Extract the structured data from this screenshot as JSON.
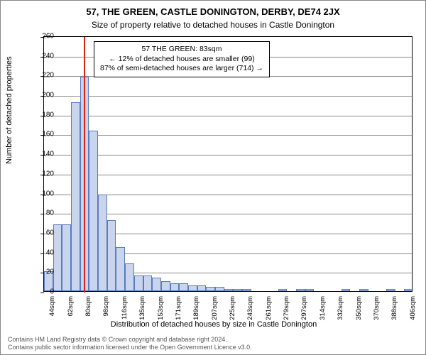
{
  "header": {
    "address": "57, THE GREEN, CASTLE DONINGTON, DERBY, DE74 2JX",
    "subtitle": "Size of property relative to detached houses in Castle Donington"
  },
  "chart": {
    "type": "histogram",
    "ylabel": "Number of detached properties",
    "xlabel": "Distribution of detached houses by size in Castle Donington",
    "ylim": [
      0,
      260
    ],
    "ytick_step": 20,
    "yticks": [
      0,
      20,
      40,
      60,
      80,
      100,
      120,
      140,
      160,
      180,
      200,
      220,
      240,
      260
    ],
    "xticks": [
      "44sqm",
      "62sqm",
      "80sqm",
      "98sqm",
      "116sqm",
      "135sqm",
      "153sqm",
      "171sqm",
      "189sqm",
      "207sqm",
      "225sqm",
      "243sqm",
      "261sqm",
      "279sqm",
      "297sqm",
      "314sqm",
      "332sqm",
      "350sqm",
      "370sqm",
      "388sqm",
      "406sqm"
    ],
    "bar_values": [
      20,
      68,
      68,
      192,
      218,
      163,
      98,
      72,
      45,
      28,
      16,
      16,
      14,
      10,
      8,
      8,
      6,
      6,
      4,
      4,
      2,
      2,
      2,
      0,
      0,
      0,
      2,
      0,
      2,
      2,
      0,
      0,
      0,
      2,
      0,
      2,
      0,
      0,
      2,
      0,
      2
    ],
    "bar_color": "#c9d4ed",
    "bar_border": "#5b7bbf",
    "grid_color": "#888888",
    "background_color": "#ffffff",
    "reference_line": {
      "x_index_half": 2.2,
      "color": "#dd2211"
    },
    "annotation": {
      "line1": "57 THE GREEN: 83sqm",
      "line2": "← 12% of detached houses are smaller (99)",
      "line3": "87% of semi-detached houses are larger (714) →"
    }
  },
  "footer": {
    "line1": "Contains HM Land Registry data © Crown copyright and database right 2024.",
    "line2": "Contains public sector information licensed under the Open Government Licence v3.0."
  }
}
